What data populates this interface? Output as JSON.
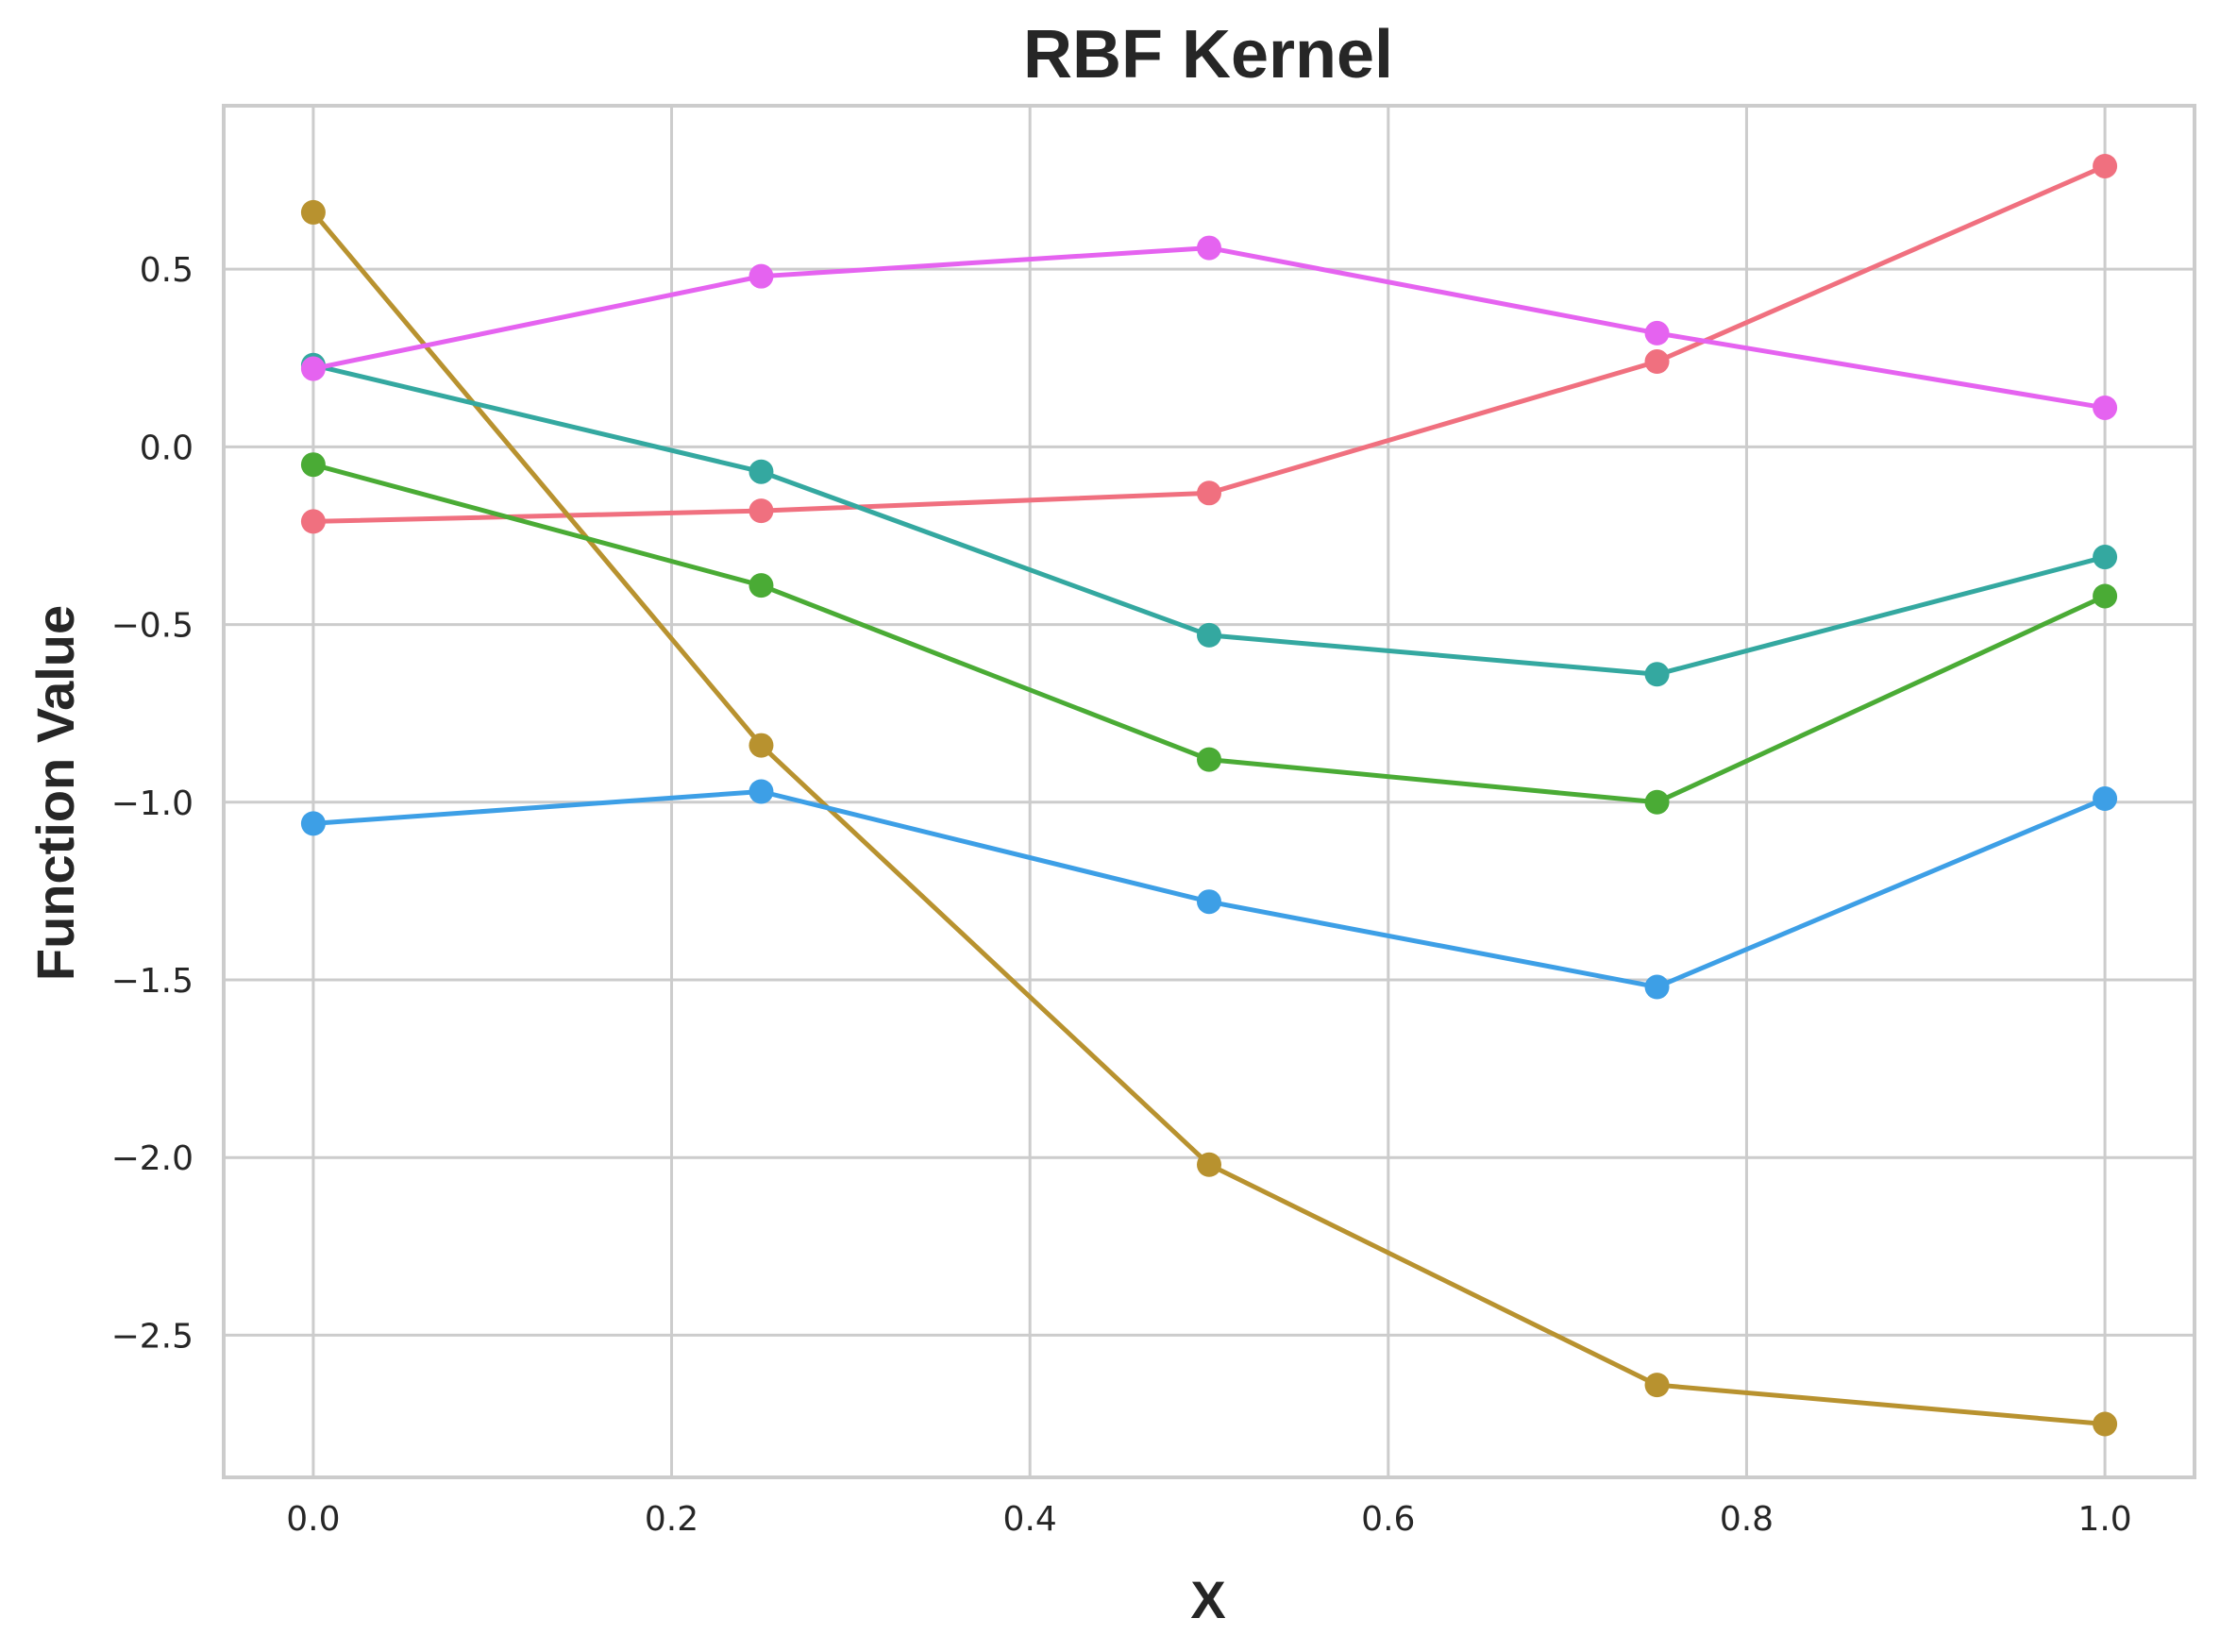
{
  "chart_data": {
    "type": "line",
    "title": "RBF Kernel",
    "xlabel": "X",
    "ylabel": "Function Value",
    "xlim": [
      -0.05,
      1.05
    ],
    "ylim": [
      -2.9,
      0.96
    ],
    "xticks": [
      "0.0",
      "0.2",
      "0.4",
      "0.6",
      "0.8",
      "1.0"
    ],
    "yticks": [
      "−2.5",
      "−2.0",
      "−1.5",
      "−1.0",
      "−0.5",
      "0.0",
      "0.5"
    ],
    "grid": true,
    "legend": "none",
    "x": [
      0.0,
      0.25,
      0.5,
      0.75,
      1.0
    ],
    "series": [
      {
        "color": "#f0707f",
        "values": [
          -0.21,
          -0.18,
          -0.13,
          0.24,
          0.79
        ]
      },
      {
        "color": "#b8922f",
        "values": [
          0.66,
          -0.84,
          -2.02,
          -2.64,
          -2.75
        ]
      },
      {
        "color": "#4aab35",
        "values": [
          -0.05,
          -0.39,
          -0.88,
          -1.0,
          -0.42
        ]
      },
      {
        "color": "#34a8a0",
        "values": [
          0.23,
          -0.07,
          -0.53,
          -0.64,
          -0.31
        ]
      },
      {
        "color": "#3d9fe6",
        "values": [
          -1.06,
          -0.97,
          -1.28,
          -1.52,
          -0.99
        ]
      },
      {
        "color": "#e563f0",
        "values": [
          0.22,
          0.48,
          0.56,
          0.32,
          0.11
        ]
      }
    ]
  }
}
